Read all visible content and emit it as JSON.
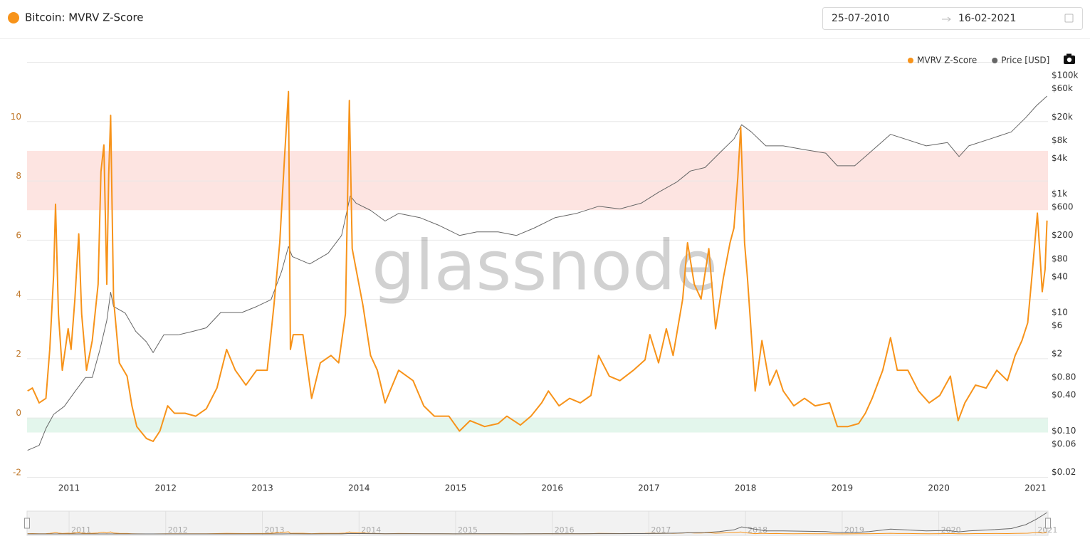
{
  "header": {
    "date_from": "25-07-2010",
    "date_to": "16-02-2021"
  },
  "chart_data": {
    "type": "line",
    "title": "Bitcoin: MVRV Z-Score",
    "watermark": "glassnode",
    "xlim": [
      2010.565,
      2021.13
    ],
    "xticks": [
      2011,
      2012,
      2013,
      2014,
      2015,
      2016,
      2017,
      2018,
      2019,
      2020,
      2021
    ],
    "ylim": [
      -2,
      12
    ],
    "yticks": [
      -2,
      0,
      2,
      4,
      6,
      8,
      10
    ],
    "grid": true,
    "y2lim": [
      0.0167,
      170000
    ],
    "y2log": true,
    "y2ticks": [
      {
        "value": 100000,
        "label": "$100k"
      },
      {
        "value": 60000,
        "label": "$60k"
      },
      {
        "value": 20000,
        "label": "$20k"
      },
      {
        "value": 8000,
        "label": "$8k"
      },
      {
        "value": 4000,
        "label": "$4k"
      },
      {
        "value": 1000,
        "label": "$1k"
      },
      {
        "value": 600,
        "label": "$600"
      },
      {
        "value": 200,
        "label": "$200"
      },
      {
        "value": 80,
        "label": "$80"
      },
      {
        "value": 40,
        "label": "$40"
      },
      {
        "value": 10,
        "label": "$10"
      },
      {
        "value": 6,
        "label": "$6"
      },
      {
        "value": 2,
        "label": "$2"
      },
      {
        "value": 0.8,
        "label": "$0.80"
      },
      {
        "value": 0.4,
        "label": "$0.40"
      },
      {
        "value": 0.1,
        "label": "$0.10"
      },
      {
        "value": 0.06,
        "label": "$0.06"
      },
      {
        "value": 0.02,
        "label": "$0.02"
      }
    ],
    "bands": [
      {
        "from": 7,
        "to": 9,
        "color": "#fde4e1"
      },
      {
        "from": -0.5,
        "to": 0,
        "color": "#e3f6ec"
      }
    ],
    "legend": "top-right",
    "series": [
      {
        "name": "MVRV Z-Score",
        "color": "#f7931a",
        "axis": "y",
        "x": [
          2010.57,
          2010.62,
          2010.69,
          2010.76,
          2010.8,
          2010.84,
          2010.86,
          2010.89,
          2010.93,
          2010.99,
          2011.02,
          2011.06,
          2011.1,
          2011.13,
          2011.18,
          2011.24,
          2011.3,
          2011.33,
          2011.36,
          2011.39,
          2011.41,
          2011.43,
          2011.46,
          2011.52,
          2011.6,
          2011.65,
          2011.7,
          2011.8,
          2011.87,
          2011.94,
          2012.02,
          2012.09,
          2012.2,
          2012.31,
          2012.42,
          2012.53,
          2012.63,
          2012.72,
          2012.83,
          2012.94,
          2013.05,
          2013.12,
          2013.18,
          2013.23,
          2013.27,
          2013.29,
          2013.32,
          2013.42,
          2013.51,
          2013.6,
          2013.71,
          2013.79,
          2013.86,
          2013.9,
          2013.93,
          2013.97,
          2014.04,
          2014.12,
          2014.19,
          2014.27,
          2014.41,
          2014.56,
          2014.67,
          2014.78,
          2014.93,
          2015.04,
          2015.15,
          2015.3,
          2015.44,
          2015.53,
          2015.67,
          2015.78,
          2015.89,
          2015.96,
          2016.07,
          2016.18,
          2016.29,
          2016.4,
          2016.48,
          2016.59,
          2016.7,
          2016.84,
          2016.96,
          2017.01,
          2017.1,
          2017.18,
          2017.25,
          2017.35,
          2017.4,
          2017.47,
          2017.54,
          2017.62,
          2017.69,
          2017.77,
          2017.84,
          2017.88,
          2017.92,
          2017.95,
          2017.99,
          2018.02,
          2018.06,
          2018.1,
          2018.17,
          2018.25,
          2018.32,
          2018.39,
          2018.5,
          2018.61,
          2018.72,
          2018.87,
          2018.95,
          2019.06,
          2019.17,
          2019.24,
          2019.31,
          2019.42,
          2019.5,
          2019.57,
          2019.68,
          2019.79,
          2019.9,
          2020.01,
          2020.12,
          2020.2,
          2020.27,
          2020.38,
          2020.49,
          2020.6,
          2020.71,
          2020.79,
          2020.86,
          2020.92,
          2020.97,
          2021.02,
          2021.07,
          2021.1,
          2021.12
        ],
        "values": [
          0.9,
          1.0,
          0.5,
          0.65,
          2.3,
          4.8,
          7.2,
          3.5,
          1.6,
          3.0,
          2.3,
          4.0,
          6.2,
          3.5,
          1.6,
          2.6,
          4.5,
          8.3,
          9.2,
          4.5,
          8.2,
          10.2,
          4.0,
          1.85,
          1.4,
          0.4,
          -0.3,
          -0.7,
          -0.8,
          -0.45,
          0.4,
          0.15,
          0.15,
          0.05,
          0.3,
          1.0,
          2.3,
          1.6,
          1.1,
          1.6,
          1.6,
          3.8,
          5.9,
          8.8,
          11.0,
          2.3,
          2.8,
          2.8,
          0.65,
          1.85,
          2.1,
          1.85,
          3.5,
          10.7,
          5.7,
          5.0,
          3.8,
          2.1,
          1.6,
          0.5,
          1.6,
          1.25,
          0.4,
          0.05,
          0.05,
          -0.45,
          -0.1,
          -0.3,
          -0.2,
          0.05,
          -0.25,
          0.05,
          0.5,
          0.9,
          0.4,
          0.65,
          0.5,
          0.75,
          2.1,
          1.4,
          1.25,
          1.6,
          1.95,
          2.8,
          1.85,
          3.0,
          2.1,
          4.0,
          5.9,
          4.5,
          4.0,
          5.7,
          3.0,
          4.7,
          5.9,
          6.4,
          8.1,
          9.8,
          5.9,
          4.7,
          2.8,
          0.9,
          2.6,
          1.1,
          1.6,
          0.9,
          0.4,
          0.65,
          0.4,
          0.5,
          -0.3,
          -0.3,
          -0.2,
          0.15,
          0.65,
          1.6,
          2.7,
          1.6,
          1.6,
          0.9,
          0.5,
          0.75,
          1.4,
          -0.1,
          0.5,
          1.1,
          1.0,
          1.6,
          1.25,
          2.1,
          2.6,
          3.2,
          5.0,
          6.9,
          4.25,
          5.0,
          6.65
        ]
      },
      {
        "name": "Price [USD]",
        "color": "#666666",
        "axis": "y2",
        "x": [
          2010.57,
          2010.69,
          2010.76,
          2010.84,
          2010.95,
          2011.06,
          2011.17,
          2011.24,
          2011.32,
          2011.39,
          2011.43,
          2011.46,
          2011.58,
          2011.69,
          2011.8,
          2011.87,
          2011.98,
          2012.13,
          2012.28,
          2012.42,
          2012.57,
          2012.79,
          2012.94,
          2013.09,
          2013.2,
          2013.27,
          2013.31,
          2013.49,
          2013.68,
          2013.82,
          2013.91,
          2013.97,
          2014.12,
          2014.27,
          2014.41,
          2014.63,
          2014.82,
          2015.04,
          2015.22,
          2015.44,
          2015.63,
          2015.81,
          2016.03,
          2016.25,
          2016.48,
          2016.7,
          2016.92,
          2017.1,
          2017.29,
          2017.43,
          2017.58,
          2017.73,
          2017.88,
          2017.96,
          2018.06,
          2018.21,
          2018.39,
          2018.61,
          2018.83,
          2018.95,
          2019.13,
          2019.28,
          2019.5,
          2019.65,
          2019.87,
          2020.09,
          2020.21,
          2020.31,
          2020.53,
          2020.75,
          2020.9,
          2021.01,
          2021.12
        ],
        "values": [
          0.047,
          0.057,
          0.11,
          0.19,
          0.26,
          0.46,
          0.8,
          0.8,
          2.4,
          7.3,
          22,
          12.6,
          9.8,
          4.8,
          3.2,
          2.1,
          4.2,
          4.2,
          4.8,
          5.5,
          10,
          10,
          12.6,
          16.5,
          50,
          130,
          88,
          66,
          100,
          200,
          930,
          700,
          530,
          350,
          470,
          400,
          300,
          200,
          230,
          230,
          200,
          265,
          400,
          470,
          620,
          560,
          700,
          1070,
          1600,
          2450,
          2800,
          4900,
          8500,
          14800,
          11200,
          6500,
          6500,
          5600,
          4900,
          3000,
          3000,
          4900,
          10200,
          8500,
          6500,
          7400,
          4300,
          6500,
          8500,
          11200,
          19500,
          31000,
          45000
        ]
      }
    ]
  }
}
